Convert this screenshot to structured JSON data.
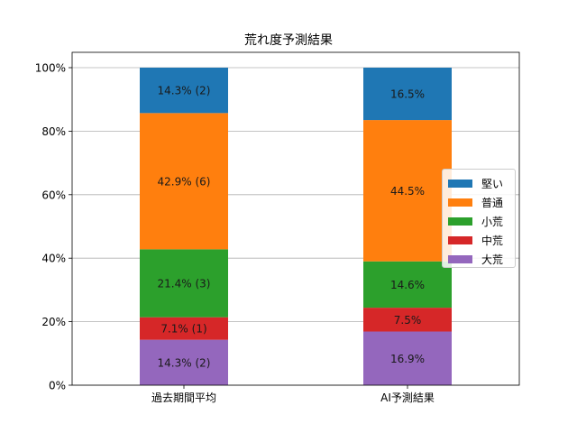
{
  "chart_data": {
    "type": "bar",
    "stacked": true,
    "title": "荒れ度予測結果",
    "xlabel": "",
    "ylabel": "",
    "ylim": [
      0,
      100
    ],
    "ytick_format": "percent",
    "yticks": [
      0,
      20,
      40,
      60,
      80,
      100
    ],
    "ytick_labels": [
      "0%",
      "20%",
      "40%",
      "60%",
      "80%",
      "100%"
    ],
    "grid": "y",
    "legend_position": "right",
    "categories": [
      "過去期間平均",
      "AI予測結果"
    ],
    "series": [
      {
        "name": "大荒",
        "color": "#9467bd",
        "values": [
          14.3,
          16.9
        ],
        "labels": [
          "14.3% (2)",
          "16.9%"
        ]
      },
      {
        "name": "中荒",
        "color": "#d62728",
        "values": [
          7.1,
          7.5
        ],
        "labels": [
          "7.1% (1)",
          "7.5%"
        ]
      },
      {
        "name": "小荒",
        "color": "#2ca02c",
        "values": [
          21.4,
          14.6
        ],
        "labels": [
          "21.4% (3)",
          "14.6%"
        ]
      },
      {
        "name": "普通",
        "color": "#ff7f0e",
        "values": [
          42.9,
          44.5
        ],
        "labels": [
          "42.9% (6)",
          "44.5%"
        ]
      },
      {
        "name": "堅い",
        "color": "#1f77b4",
        "values": [
          14.3,
          16.5
        ],
        "labels": [
          "14.3% (2)",
          "16.5%"
        ]
      }
    ],
    "legend_order": [
      "堅い",
      "普通",
      "小荒",
      "中荒",
      "大荒"
    ]
  }
}
